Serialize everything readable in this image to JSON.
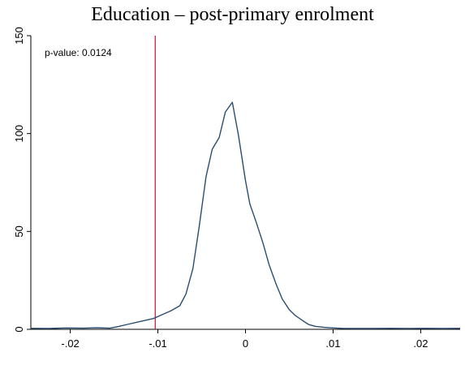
{
  "chart_data": {
    "type": "line",
    "title": "Education – post-primary enrolment",
    "xlabel": "",
    "ylabel": "",
    "xlim": [
      -0.0245,
      0.0245
    ],
    "ylim": [
      0,
      150
    ],
    "x_ticks": [
      -0.02,
      -0.01,
      0,
      0.01,
      0.02
    ],
    "x_tick_labels": [
      "-.02",
      "-.01",
      "0",
      ".01",
      ".02"
    ],
    "y_ticks": [
      0,
      50,
      100,
      150
    ],
    "y_tick_labels": [
      "0",
      "50",
      "100",
      "150"
    ],
    "grid": false,
    "legend": "none",
    "annotation": "p-value: 0.0124",
    "vline": {
      "x": -0.0103,
      "color": "#c8224b"
    },
    "series": [
      {
        "color": "#2b4d6f",
        "x": [
          -0.0245,
          -0.0225,
          -0.0205,
          -0.0185,
          -0.017,
          -0.0155,
          -0.0145,
          -0.0135,
          -0.012,
          -0.0105,
          -0.0095,
          -0.0085,
          -0.0075,
          -0.0068,
          -0.006,
          -0.0053,
          -0.0045,
          -0.0038,
          -0.003,
          -0.0023,
          -0.0015,
          -0.0008,
          0.0,
          0.0005,
          0.0012,
          0.002,
          0.0027,
          0.0035,
          0.0042,
          0.005,
          0.0057,
          0.0065,
          0.0072,
          0.008,
          0.009,
          0.01,
          0.011,
          0.0125,
          0.0145,
          0.0165,
          0.0185,
          0.0205,
          0.0225,
          0.0245
        ],
        "y": [
          0.5,
          0.4,
          0.7,
          0.6,
          0.8,
          0.6,
          1.4,
          2.5,
          4.0,
          5.5,
          7.5,
          9.5,
          12.0,
          18.0,
          31.0,
          52.0,
          78.0,
          92.0,
          98.0,
          111.0,
          116.0,
          99.0,
          76.0,
          64.0,
          55.0,
          44.0,
          33.0,
          23.0,
          15.5,
          10.0,
          7.0,
          4.5,
          2.5,
          1.5,
          1.0,
          0.7,
          0.5,
          0.4,
          0.4,
          0.5,
          0.4,
          0.5,
          0.4,
          0.5
        ]
      }
    ]
  }
}
